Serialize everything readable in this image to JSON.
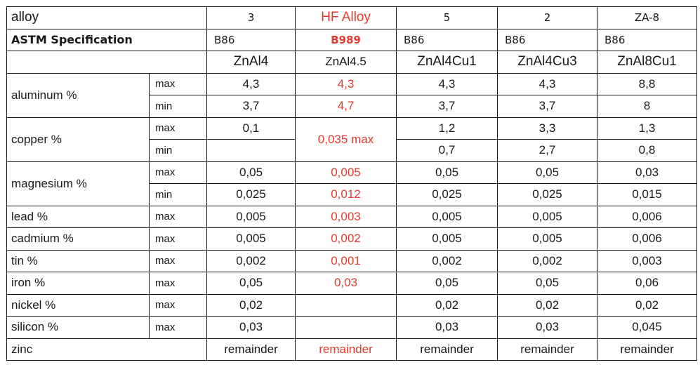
{
  "header": {
    "alloy_label": "alloy",
    "astm_label": "ASTM Specification",
    "alloys": [
      "3",
      "HF Alloy",
      "5",
      "2",
      "ZA-8"
    ],
    "astm": [
      "B86",
      "B989",
      "B86",
      "B86",
      "B86"
    ],
    "designations": [
      "ZnAl4",
      "ZnAl4.5",
      "ZnAl4Cu1",
      "ZnAl4Cu3",
      "ZnAl8Cu1"
    ]
  },
  "rows": {
    "aluminum": {
      "label": "aluminum %",
      "max_label": "max",
      "min_label": "min",
      "max": [
        "4,3",
        "4,3",
        "4,3",
        "4,3",
        "8,8"
      ],
      "min": [
        "3,7",
        "4,7",
        "3,7",
        "3,7",
        "8"
      ]
    },
    "copper": {
      "label": "copper %",
      "max_label": "max",
      "min_label": "min",
      "max": [
        "0,1",
        "0,035 max",
        "1,2",
        "3,3",
        "1,3"
      ],
      "min": [
        "",
        "",
        "0,7",
        "2,7",
        "0,8"
      ]
    },
    "magnesium": {
      "label": "magnesium %",
      "max_label": "max",
      "min_label": "min",
      "max": [
        "0,05",
        "0,005",
        "0,05",
        "0,05",
        "0,03"
      ],
      "min": [
        "0,025",
        "0,012",
        "0,025",
        "0,025",
        "0,015"
      ]
    },
    "lead": {
      "label": "lead %",
      "qualifier": "max",
      "values": [
        "0,005",
        "0,003",
        "0,005",
        "0,005",
        "0,006"
      ]
    },
    "cadmium": {
      "label": "cadmium %",
      "qualifier": "max",
      "values": [
        "0,005",
        "0,002",
        "0,005",
        "0,005",
        "0,006"
      ]
    },
    "tin": {
      "label": "tin %",
      "qualifier": "max",
      "values": [
        "0,002",
        "0,001",
        "0,002",
        "0,002",
        "0,003"
      ]
    },
    "iron": {
      "label": "iron %",
      "qualifier": "max",
      "values": [
        "0,05",
        "0,03",
        "0,05",
        "0,05",
        "0,06"
      ]
    },
    "nickel": {
      "label": "nickel %",
      "qualifier": "max",
      "values": [
        "0,02",
        "",
        "0,02",
        "0,02",
        "0,02"
      ]
    },
    "silicon": {
      "label": "silicon %",
      "qualifier": "max",
      "values": [
        "0,03",
        "",
        "0,03",
        "0,03",
        "0,045"
      ]
    },
    "zinc": {
      "label": "zinc",
      "values": [
        "remainder",
        "remainder",
        "remainder",
        "remainder",
        "remainder"
      ]
    }
  },
  "colors": {
    "hf_highlight": "#e03b2e",
    "text": "#1a1a1a",
    "border": "#1a1a1a"
  }
}
